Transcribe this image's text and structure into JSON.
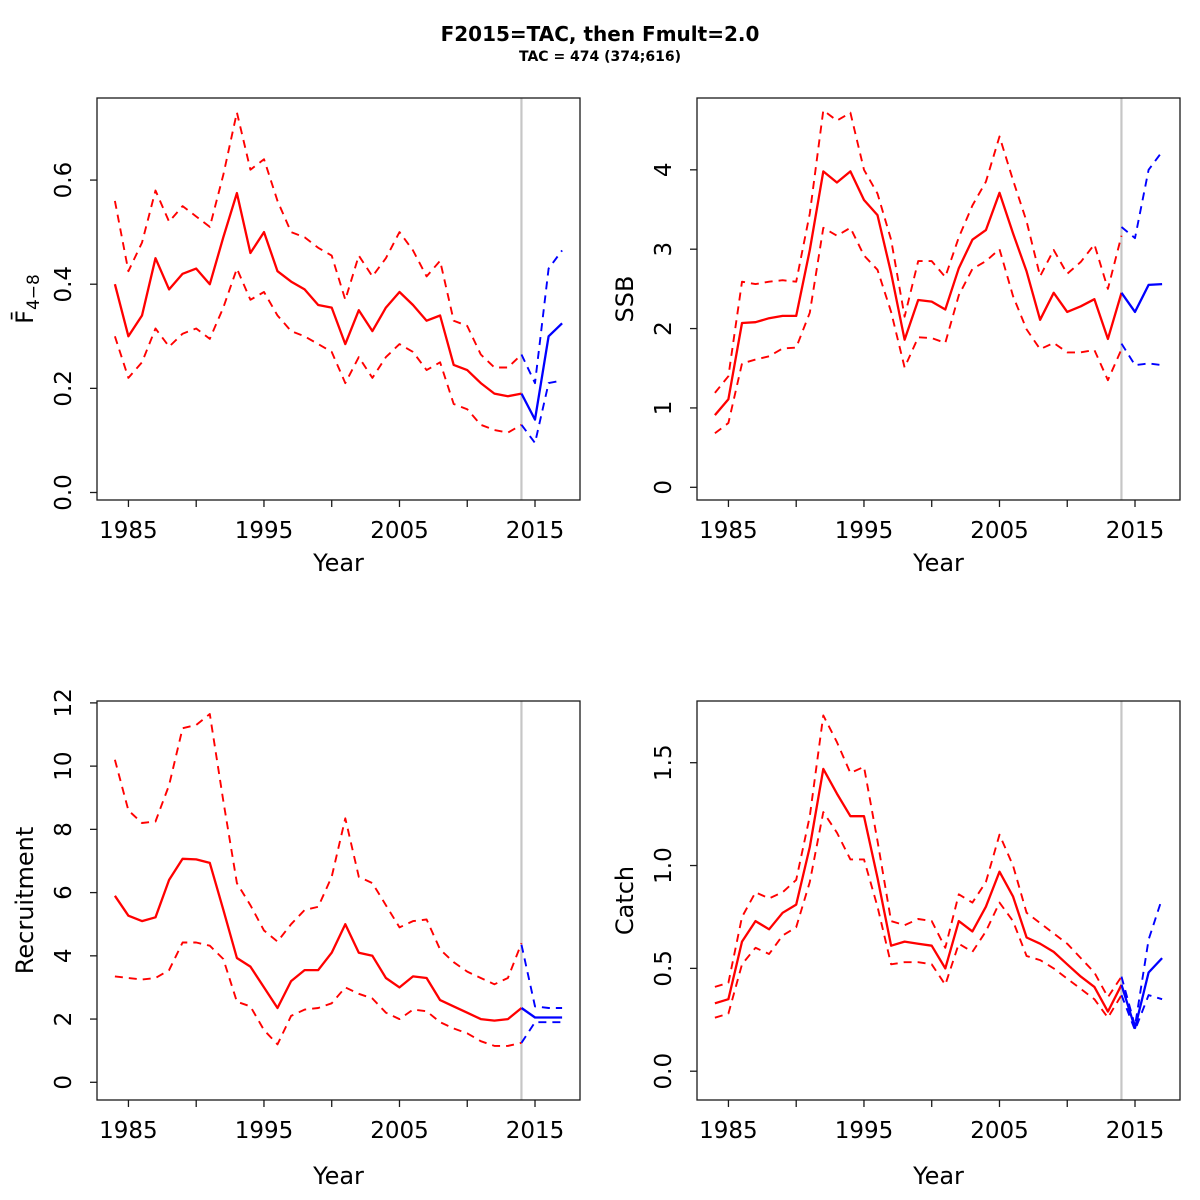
{
  "header": {
    "title": "F2015=TAC, then Fmult=2.0",
    "subtitle": "TAC = 474 (374;616)"
  },
  "colors": {
    "historic": "#ff0000",
    "projection": "#0000ff",
    "divider": "#c6c6c6",
    "axis": "#1a1a1a"
  },
  "chart_data": [
    {
      "id": "f-bar-4-8",
      "type": "line",
      "ylabel_main": "F",
      "ylabel_overline": true,
      "ylabel_sub": "4−8",
      "xlabel": "Year",
      "xlim": [
        1982.68,
        2018.32
      ],
      "ylim": [
        -0.0144,
        0.7576
      ],
      "xticks": [
        1985,
        1990,
        1995,
        2000,
        2005,
        2010,
        2015
      ],
      "xtick_labels": [
        "1985",
        "1995",
        "2005",
        "2015"
      ],
      "yticks": [
        0.0,
        0.2,
        0.4,
        0.6
      ],
      "ytick_labels": [
        "0.0",
        "0.2",
        "0.4",
        "0.6"
      ],
      "divider_year": 2014,
      "grid": "off",
      "legend": "none",
      "historic": {
        "years": [
          1984,
          1985,
          1986,
          1987,
          1988,
          1989,
          1990,
          1991,
          1992,
          1993,
          1994,
          1995,
          1996,
          1997,
          1998,
          1999,
          2000,
          2001,
          2002,
          2003,
          2004,
          2005,
          2006,
          2007,
          2008,
          2009,
          2010,
          2011,
          2012,
          2013,
          2014
        ],
        "median": [
          0.4,
          0.3,
          0.34,
          0.45,
          0.39,
          0.42,
          0.43,
          0.4,
          0.49,
          0.575,
          0.46,
          0.5,
          0.425,
          0.405,
          0.39,
          0.36,
          0.355,
          0.285,
          0.35,
          0.31,
          0.355,
          0.385,
          0.36,
          0.33,
          0.34,
          0.245,
          0.235,
          0.21,
          0.19,
          0.185,
          0.19
        ],
        "upper": [
          0.56,
          0.425,
          0.48,
          0.58,
          0.52,
          0.55,
          0.53,
          0.51,
          0.61,
          0.73,
          0.62,
          0.64,
          0.56,
          0.5,
          0.49,
          0.47,
          0.455,
          0.37,
          0.455,
          0.415,
          0.45,
          0.5,
          0.465,
          0.415,
          0.445,
          0.33,
          0.32,
          0.265,
          0.24,
          0.24,
          0.265
        ],
        "lower": [
          0.3,
          0.22,
          0.25,
          0.315,
          0.28,
          0.305,
          0.315,
          0.295,
          0.355,
          0.43,
          0.37,
          0.385,
          0.34,
          0.31,
          0.3,
          0.285,
          0.27,
          0.21,
          0.26,
          0.22,
          0.26,
          0.285,
          0.27,
          0.235,
          0.25,
          0.17,
          0.16,
          0.13,
          0.12,
          0.115,
          0.13
        ]
      },
      "projection": {
        "years": [
          2014,
          2015,
          2016,
          2017
        ],
        "median": [
          0.19,
          0.14,
          0.3,
          0.325
        ],
        "upper": [
          0.265,
          0.21,
          0.43,
          0.465
        ],
        "lower": [
          0.13,
          0.095,
          0.21,
          0.215
        ]
      }
    },
    {
      "id": "ssb",
      "type": "line",
      "ylabel_main": "SSB",
      "ylabel_overline": false,
      "ylabel_sub": "",
      "xlabel": "Year",
      "xlim": [
        1982.68,
        2018.32
      ],
      "ylim": [
        -0.16,
        4.905
      ],
      "xticks": [
        1985,
        1990,
        1995,
        2000,
        2005,
        2010,
        2015
      ],
      "xtick_labels": [
        "1985",
        "1995",
        "2005",
        "2015"
      ],
      "yticks": [
        0,
        1,
        2,
        3,
        4
      ],
      "ytick_labels": [
        "0",
        "1",
        "2",
        "3",
        "4"
      ],
      "divider_year": 2014,
      "grid": "off",
      "legend": "none",
      "historic": {
        "years": [
          1984,
          1985,
          1986,
          1987,
          1988,
          1989,
          1990,
          1991,
          1992,
          1993,
          1994,
          1995,
          1996,
          1997,
          1998,
          1999,
          2000,
          2001,
          2002,
          2003,
          2004,
          2005,
          2006,
          2007,
          2008,
          2009,
          2010,
          2011,
          2012,
          2013,
          2014
        ],
        "median": [
          0.91,
          1.11,
          2.07,
          2.08,
          2.13,
          2.16,
          2.16,
          2.99,
          3.98,
          3.84,
          3.98,
          3.62,
          3.43,
          2.7,
          1.86,
          2.36,
          2.34,
          2.24,
          2.76,
          3.12,
          3.24,
          3.71,
          3.2,
          2.72,
          2.11,
          2.45,
          2.21,
          2.28,
          2.37,
          1.87,
          2.45
        ],
        "upper": [
          1.19,
          1.4,
          2.59,
          2.56,
          2.59,
          2.61,
          2.59,
          3.45,
          4.75,
          4.62,
          4.72,
          4.0,
          3.7,
          3.12,
          2.15,
          2.85,
          2.85,
          2.65,
          3.15,
          3.55,
          3.85,
          4.42,
          3.87,
          3.35,
          2.66,
          2.99,
          2.69,
          2.84,
          3.06,
          2.5,
          3.17
        ],
        "lower": [
          0.68,
          0.81,
          1.56,
          1.61,
          1.65,
          1.75,
          1.76,
          2.2,
          3.27,
          3.17,
          3.27,
          2.92,
          2.74,
          2.21,
          1.51,
          1.89,
          1.88,
          1.82,
          2.42,
          2.75,
          2.85,
          3.0,
          2.41,
          1.99,
          1.74,
          1.82,
          1.7,
          1.7,
          1.73,
          1.35,
          1.74
        ]
      },
      "projection": {
        "years": [
          2014,
          2015,
          2016,
          2017
        ],
        "median": [
          2.45,
          2.21,
          2.55,
          2.56
        ],
        "upper": [
          3.28,
          3.14,
          4.0,
          4.23
        ],
        "lower": [
          1.81,
          1.54,
          1.56,
          1.54
        ]
      }
    },
    {
      "id": "recruitment",
      "type": "line",
      "ylabel_main": "Recruitment",
      "ylabel_overline": false,
      "ylabel_sub": "",
      "xlabel": "Year",
      "xlim": [
        1982.68,
        2018.32
      ],
      "ylim": [
        -0.56,
        12.06
      ],
      "xticks": [
        1985,
        1990,
        1995,
        2000,
        2005,
        2010,
        2015
      ],
      "xtick_labels": [
        "1985",
        "1995",
        "2005",
        "2015"
      ],
      "yticks": [
        0,
        2,
        4,
        6,
        8,
        10,
        12
      ],
      "ytick_labels": [
        "0",
        "2",
        "4",
        "6",
        "8",
        "10",
        "12"
      ],
      "divider_year": 2014,
      "grid": "off",
      "legend": "none",
      "historic": {
        "years": [
          1984,
          1985,
          1986,
          1987,
          1988,
          1989,
          1990,
          1991,
          1992,
          1993,
          1994,
          1995,
          1996,
          1997,
          1998,
          1999,
          2000,
          2001,
          2002,
          2003,
          2004,
          2005,
          2006,
          2007,
          2008,
          2009,
          2010,
          2011,
          2012,
          2013,
          2014
        ],
        "median": [
          5.9,
          5.27,
          5.1,
          5.22,
          6.4,
          7.07,
          7.05,
          6.94,
          5.46,
          3.93,
          3.66,
          3.0,
          2.35,
          3.2,
          3.55,
          3.55,
          4.1,
          5.0,
          4.1,
          4.0,
          3.3,
          3.0,
          3.35,
          3.3,
          2.6,
          2.4,
          2.2,
          2.0,
          1.95,
          2.0,
          2.35
        ],
        "upper": [
          10.2,
          8.6,
          8.2,
          8.25,
          9.4,
          11.2,
          11.3,
          11.65,
          8.9,
          6.3,
          5.6,
          4.8,
          4.45,
          5.0,
          5.45,
          5.55,
          6.5,
          8.35,
          6.5,
          6.3,
          5.6,
          4.9,
          5.1,
          5.15,
          4.2,
          3.8,
          3.5,
          3.3,
          3.1,
          3.3,
          4.4
        ],
        "lower": [
          3.35,
          3.3,
          3.25,
          3.3,
          3.55,
          4.42,
          4.42,
          4.32,
          3.9,
          2.55,
          2.4,
          1.65,
          1.2,
          2.1,
          2.3,
          2.35,
          2.5,
          3.0,
          2.8,
          2.65,
          2.2,
          2.0,
          2.3,
          2.25,
          1.9,
          1.7,
          1.55,
          1.3,
          1.15,
          1.15,
          1.25
        ],
        "note": ""
      },
      "projection": {
        "years": [
          2014,
          2015,
          2016,
          2017
        ],
        "median": [
          2.35,
          2.05,
          2.05,
          2.05
        ],
        "upper": [
          4.35,
          2.4,
          2.35,
          2.35
        ],
        "lower": [
          1.25,
          1.9,
          1.9,
          1.9
        ]
      }
    },
    {
      "id": "catch",
      "type": "line",
      "ylabel_main": "Catch",
      "ylabel_overline": false,
      "ylabel_sub": "",
      "xlabel": "Year",
      "xlim": [
        1982.68,
        2018.32
      ],
      "ylim": [
        -0.14,
        1.8
      ],
      "xticks": [
        1985,
        1990,
        1995,
        2000,
        2005,
        2010,
        2015
      ],
      "xtick_labels": [
        "1985",
        "1995",
        "2005",
        "2015"
      ],
      "yticks": [
        0.0,
        0.5,
        1.0,
        1.5
      ],
      "ytick_labels": [
        "0.0",
        "0.5",
        "1.0",
        "1.5"
      ],
      "divider_year": 2014,
      "grid": "off",
      "legend": "none",
      "historic": {
        "years": [
          1984,
          1985,
          1986,
          1987,
          1988,
          1989,
          1990,
          1991,
          1992,
          1993,
          1994,
          1995,
          1996,
          1997,
          1998,
          1999,
          2000,
          2001,
          2002,
          2003,
          2004,
          2005,
          2006,
          2007,
          2008,
          2009,
          2010,
          2011,
          2012,
          2013,
          2014
        ],
        "median": [
          0.33,
          0.35,
          0.63,
          0.73,
          0.69,
          0.77,
          0.81,
          1.09,
          1.47,
          1.35,
          1.24,
          1.24,
          0.94,
          0.61,
          0.63,
          0.62,
          0.61,
          0.5,
          0.73,
          0.68,
          0.8,
          0.97,
          0.85,
          0.65,
          0.62,
          0.58,
          0.52,
          0.46,
          0.41,
          0.29,
          0.42
        ],
        "upper": [
          0.41,
          0.43,
          0.75,
          0.87,
          0.84,
          0.87,
          0.93,
          1.24,
          1.73,
          1.6,
          1.45,
          1.48,
          1.12,
          0.73,
          0.71,
          0.74,
          0.73,
          0.6,
          0.86,
          0.82,
          0.92,
          1.15,
          1.0,
          0.77,
          0.72,
          0.67,
          0.62,
          0.55,
          0.48,
          0.36,
          0.46
        ],
        "lower": [
          0.26,
          0.28,
          0.52,
          0.6,
          0.57,
          0.66,
          0.7,
          0.92,
          1.26,
          1.16,
          1.03,
          1.03,
          0.8,
          0.52,
          0.53,
          0.53,
          0.52,
          0.42,
          0.62,
          0.58,
          0.68,
          0.82,
          0.73,
          0.56,
          0.54,
          0.5,
          0.45,
          0.4,
          0.35,
          0.26,
          0.37
        ]
      },
      "projection": {
        "years": [
          2014,
          2015,
          2016,
          2017
        ],
        "median": [
          0.42,
          0.21,
          0.48,
          0.55
        ],
        "upper": [
          0.46,
          0.22,
          0.64,
          0.84
        ],
        "lower": [
          0.37,
          0.2,
          0.37,
          0.35
        ]
      }
    }
  ]
}
